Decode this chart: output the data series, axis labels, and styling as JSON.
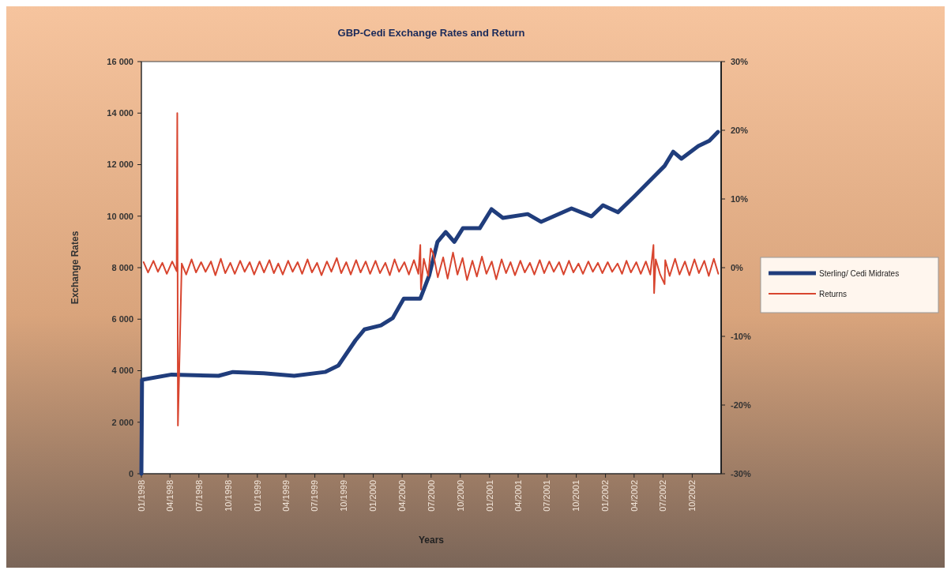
{
  "chart_data": {
    "type": "line",
    "title": "GBP-Cedi Exchange Rates and Return",
    "xlabel": "Years",
    "ylabel": "Exchange Rates",
    "xlim": [
      "1998-01-01",
      "2002-12-31"
    ],
    "xticks": [
      {
        "value": "1998-01-01",
        "label": "01/1998"
      },
      {
        "value": "1998-04-01",
        "label": "04/1998"
      },
      {
        "value": "1998-07-01",
        "label": "07/1998"
      },
      {
        "value": "1998-10-01",
        "label": "10/1998"
      },
      {
        "value": "1999-01-01",
        "label": "01/1999"
      },
      {
        "value": "1999-04-01",
        "label": "04/1999"
      },
      {
        "value": "1999-07-01",
        "label": "07/1999"
      },
      {
        "value": "1999-10-01",
        "label": "10/1999"
      },
      {
        "value": "2000-01-01",
        "label": "01/2000"
      },
      {
        "value": "2000-04-01",
        "label": "04/2000"
      },
      {
        "value": "2000-07-01",
        "label": "07/2000"
      },
      {
        "value": "2000-10-01",
        "label": "10/2000"
      },
      {
        "value": "2001-01-01",
        "label": "01/2001"
      },
      {
        "value": "2001-04-01",
        "label": "04/2001"
      },
      {
        "value": "2001-07-01",
        "label": "07/2001"
      },
      {
        "value": "2001-10-01",
        "label": "10/2001"
      },
      {
        "value": "2002-01-01",
        "label": "01/2002"
      },
      {
        "value": "2002-04-01",
        "label": "04/2002"
      },
      {
        "value": "2002-07-01",
        "label": "07/2002"
      },
      {
        "value": "2002-10-01",
        "label": "10/2002"
      }
    ],
    "ylim": [
      0,
      16000
    ],
    "yticks": [
      0,
      {
        "value": 2000,
        "label": "2 000"
      },
      {
        "value": 4000,
        "label": "4 000"
      },
      {
        "value": 6000,
        "label": "6 000"
      },
      {
        "value": 8000,
        "label": "8 000"
      },
      {
        "value": 10000,
        "label": "10 000"
      },
      {
        "value": 12000,
        "label": "12 000"
      },
      {
        "value": 14000,
        "label": "14 000"
      },
      {
        "value": 16000,
        "label": "16 000"
      }
    ],
    "y2lim": [
      -30,
      30
    ],
    "y2ticks": [
      {
        "value": -30,
        "label": "-30%"
      },
      {
        "value": -20,
        "label": "-20%"
      },
      {
        "value": -10,
        "label": "-10%"
      },
      {
        "value": 0,
        "label": "0%"
      },
      {
        "value": 10,
        "label": "10%"
      },
      {
        "value": 20,
        "label": "20%"
      },
      {
        "value": 30,
        "label": "30%"
      }
    ],
    "grid": false,
    "legend": "right",
    "marker": "none",
    "line_style": "solid",
    "series": [
      {
        "name": "Sterling/  Cedi Midrates",
        "color": "#203d7c",
        "x": [
          "1998-01-01",
          "1998-01-03",
          "1998-04-06",
          "1998-09-01",
          "1998-10-16",
          "1999-01-21",
          "1999-04-27",
          "1999-08-02",
          "1999-09-13",
          "1999-11-06",
          "1999-12-04",
          "2000-01-25",
          "2000-03-02",
          "2000-04-06",
          "2000-05-28",
          "2000-06-25",
          "2000-07-21",
          "2000-08-16",
          "2000-09-12",
          "2000-10-09",
          "2000-12-01",
          "2001-01-07",
          "2001-02-12",
          "2001-05-01",
          "2001-06-12",
          "2001-09-16",
          "2001-11-18",
          "2001-12-24",
          "2002-02-09",
          "2002-04-01",
          "2002-06-01",
          "2002-07-06",
          "2002-08-02",
          "2002-08-28",
          "2002-10-20",
          "2002-11-24",
          "2002-12-21"
        ],
        "values": [
          0,
          3650,
          3850,
          3800,
          3950,
          3900,
          3800,
          3950,
          4200,
          5180,
          5600,
          5760,
          6040,
          6800,
          6800,
          7700,
          9000,
          9380,
          9000,
          9530,
          9530,
          10270,
          9930,
          10080,
          9780,
          10300,
          9990,
          10420,
          10150,
          10760,
          11520,
          11950,
          12500,
          12230,
          12720,
          12930,
          13270
        ]
      },
      {
        "name": "Returns",
        "color": "#d8452f",
        "axis": "y2",
        "x": [
          "1998-01-08",
          "1998-01-22",
          "1998-02-08",
          "1998-02-22",
          "1998-03-08",
          "1998-03-22",
          "1998-04-08",
          "1998-04-22",
          "1998-04-24",
          "1998-04-26",
          "1998-05-08",
          "1998-05-22",
          "1998-06-08",
          "1998-06-22",
          "1998-07-08",
          "1998-07-22",
          "1998-08-08",
          "1998-08-22",
          "1998-09-08",
          "1998-09-22",
          "1998-10-08",
          "1998-10-22",
          "1998-11-08",
          "1998-11-22",
          "1998-12-08",
          "1998-12-22",
          "1999-01-08",
          "1999-01-22",
          "1999-02-08",
          "1999-02-22",
          "1999-03-08",
          "1999-03-22",
          "1999-04-08",
          "1999-04-22",
          "1999-05-08",
          "1999-05-22",
          "1999-06-08",
          "1999-06-22",
          "1999-07-08",
          "1999-07-22",
          "1999-08-08",
          "1999-08-22",
          "1999-09-08",
          "1999-09-22",
          "1999-10-08",
          "1999-10-22",
          "1999-11-08",
          "1999-11-22",
          "1999-12-08",
          "1999-12-22",
          "2000-01-08",
          "2000-01-22",
          "2000-02-08",
          "2000-02-22",
          "2000-03-08",
          "2000-03-22",
          "2000-04-08",
          "2000-04-22",
          "2000-05-08",
          "2000-05-22",
          "2000-05-28",
          "2000-05-30",
          "2000-06-08",
          "2000-06-22",
          "2000-06-30",
          "2000-07-08",
          "2000-07-22",
          "2000-08-08",
          "2000-08-22",
          "2000-09-08",
          "2000-09-22",
          "2000-10-08",
          "2000-10-22",
          "2000-11-08",
          "2000-11-22",
          "2000-12-08",
          "2000-12-22",
          "2001-01-08",
          "2001-01-22",
          "2001-02-08",
          "2001-02-22",
          "2001-03-08",
          "2001-03-22",
          "2001-04-08",
          "2001-04-22",
          "2001-05-08",
          "2001-05-22",
          "2001-06-08",
          "2001-06-22",
          "2001-07-08",
          "2001-07-22",
          "2001-08-08",
          "2001-08-22",
          "2001-09-08",
          "2001-09-22",
          "2001-10-08",
          "2001-10-22",
          "2001-11-08",
          "2001-11-22",
          "2001-12-08",
          "2001-12-22",
          "2002-01-08",
          "2002-01-22",
          "2002-02-08",
          "2002-02-22",
          "2002-03-08",
          "2002-03-22",
          "2002-04-08",
          "2002-04-22",
          "2002-05-08",
          "2002-05-22",
          "2002-06-01",
          "2002-06-03",
          "2002-06-08",
          "2002-06-22",
          "2002-07-06",
          "2002-07-08",
          "2002-07-22",
          "2002-08-08",
          "2002-08-22",
          "2002-09-08",
          "2002-09-22",
          "2002-10-08",
          "2002-10-22",
          "2002-11-08",
          "2002-11-22",
          "2002-12-08",
          "2002-12-22"
        ],
        "values": [
          0.8,
          -0.7,
          1.0,
          -0.6,
          0.7,
          -0.9,
          0.9,
          -0.5,
          22.5,
          -23,
          0.6,
          -1.0,
          1.2,
          -0.7,
          0.8,
          -0.6,
          0.9,
          -1.1,
          1.3,
          -0.8,
          0.7,
          -0.9,
          1.0,
          -0.6,
          0.8,
          -1.0,
          0.9,
          -0.7,
          1.1,
          -0.8,
          0.6,
          -1.0,
          1.0,
          -0.6,
          0.8,
          -0.9,
          1.2,
          -0.7,
          0.7,
          -1.1,
          0.9,
          -0.6,
          1.4,
          -0.8,
          0.8,
          -1.0,
          1.1,
          -0.7,
          0.9,
          -0.9,
          1.0,
          -0.8,
          0.7,
          -1.1,
          1.2,
          -0.6,
          0.8,
          -1.0,
          1.1,
          -0.9,
          3.3,
          -3.2,
          1.3,
          -1.2,
          2.8,
          2.0,
          -1.4,
          1.5,
          -1.6,
          2.2,
          -1.0,
          1.4,
          -1.8,
          1.0,
          -1.3,
          1.6,
          -0.9,
          0.9,
          -1.7,
          1.2,
          -0.8,
          0.8,
          -1.1,
          1.0,
          -0.7,
          0.7,
          -1.0,
          1.1,
          -0.8,
          0.9,
          -0.6,
          0.8,
          -1.0,
          1.0,
          -0.7,
          0.6,
          -0.9,
          0.9,
          -0.6,
          0.7,
          -0.8,
          0.8,
          -0.6,
          0.6,
          -0.9,
          1.0,
          -0.7,
          0.8,
          -0.9,
          0.9,
          -1.0,
          3.3,
          -3.7,
          1.2,
          -1.0,
          -2.4,
          1.1,
          -1.2,
          1.3,
          -1.0,
          0.9,
          -1.1,
          1.2,
          -0.8,
          1.0,
          -1.2,
          1.3,
          -0.9
        ]
      }
    ]
  }
}
